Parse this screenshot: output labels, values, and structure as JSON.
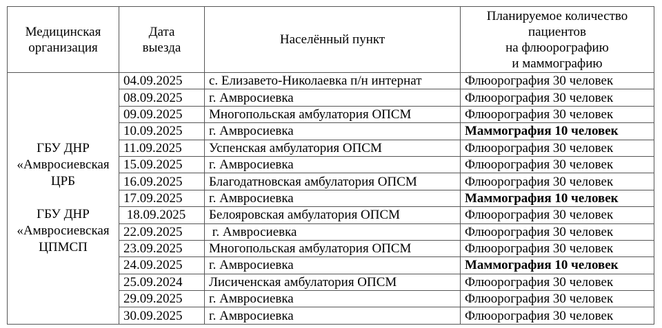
{
  "headers": {
    "organization": [
      "Медицинская",
      "организация"
    ],
    "date": [
      "Дата",
      "выезда"
    ],
    "locality": [
      "Населённый пункт"
    ],
    "planned": [
      "Планируемое количество",
      "пациентов",
      "на флюорографию",
      "и маммографию"
    ]
  },
  "organization": [
    "ГБУ ДНР",
    "«Амвросиевская",
    "ЦРБ",
    "",
    "ГБУ ДНР",
    "«Амвросиевская",
    "ЦПМСП"
  ],
  "rows": [
    {
      "date": "04.09.2025",
      "locality": "с. Елизавето-Николаевка п/н интернат",
      "planned": "Флюорография 30 человек",
      "bold": false
    },
    {
      "date": "08.09.2025",
      "locality": "г. Амвросиевка",
      "planned": "Флюорография 30 человек",
      "bold": false
    },
    {
      "date": "09.09.2025",
      "locality": "Многопольская амбулатория ОПСМ",
      "planned": "Флюорография 30 человек",
      "bold": false
    },
    {
      "date": "10.09.2025",
      "locality": "г. Амвросиевка",
      "planned": "Маммография 10 человек",
      "bold": true
    },
    {
      "date": "11.09.2025",
      "locality": "Успенская амбулатория ОПСМ",
      "planned": "Флюорография 30 человек",
      "bold": false
    },
    {
      "date": "15.09.2025",
      "locality": "г. Амвросиевка",
      "planned": "Флюорография 30 человек",
      "bold": false
    },
    {
      "date": "16.09.2025",
      "locality": "Благодатновская амбулатория ОПСМ",
      "planned": "Флюорография 30 человек",
      "bold": false
    },
    {
      "date": "17.09.2025",
      "locality": "г. Амвросиевка",
      "planned": "Маммография 10 человек",
      "bold": true
    },
    {
      "date": " 18.09.2025",
      "locality": "Белояровская амбулатория ОПСМ",
      "planned": "Флюорография 30 человек",
      "bold": false
    },
    {
      "date": "22.09.2025",
      "locality": " г. Амвросиевка",
      "planned": "Флюорография 30 человек",
      "bold": false
    },
    {
      "date": "23.09.2025",
      "locality": "Многопольская амбулатория ОПСМ",
      "planned": "Флюорография 30 человек",
      "bold": false
    },
    {
      "date": "24.09.2025",
      "locality": "г. Амвросиевка",
      "planned": "Маммография 10 человек",
      "bold": true
    },
    {
      "date": "25.09.2024",
      "locality": "Лисиченская амбулатория ОПСМ",
      "planned": "Флюорография 30 человек",
      "bold": false
    },
    {
      "date": "29.09.2025",
      "locality": "г. Амвросиевка",
      "planned": "Флюорография 30 человек",
      "bold": false
    },
    {
      "date": "30.09.2025",
      "locality": "г. Амвросиевка",
      "planned": "Флюорография 30 человек",
      "bold": false
    }
  ]
}
